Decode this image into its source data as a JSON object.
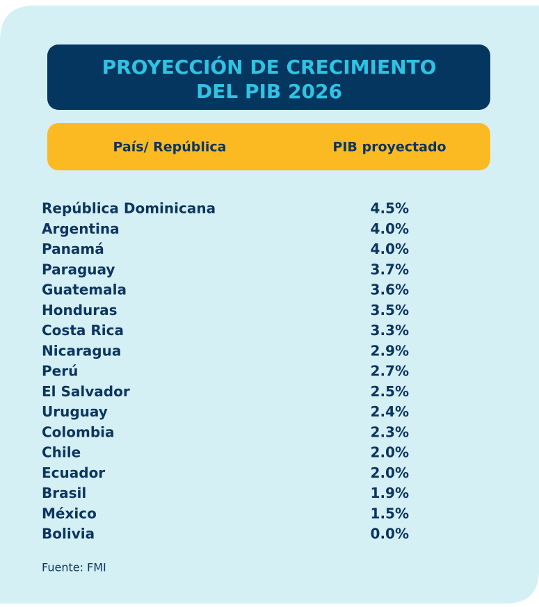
{
  "title": {
    "lines": [
      "PROYECCIÓN DE CRECIMIENTO",
      "DEL PIB 2026"
    ]
  },
  "table": {
    "header": [
      "País/ República",
      "PIB proyectado"
    ],
    "rows": [
      [
        "República Dominicana",
        "4.5%"
      ],
      [
        "Argentina",
        "4.0%"
      ],
      [
        "Panamá",
        "4.0%"
      ],
      [
        "Paraguay",
        "3.7%"
      ],
      [
        "Guatemala",
        "3.6%"
      ],
      [
        "Honduras",
        "3.5%"
      ],
      [
        "Costa Rica",
        "3.3%"
      ],
      [
        "Nicaragua",
        "2.9%"
      ],
      [
        "Perú",
        "2.7%"
      ],
      [
        "El Salvador",
        "2.5%"
      ],
      [
        "Uruguay",
        "2.4%"
      ],
      [
        "Colombia",
        "2.3%"
      ],
      [
        "Chile",
        "2.0%"
      ],
      [
        "Ecuador",
        "2.0%"
      ],
      [
        "Brasil",
        "1.9%"
      ],
      [
        "México",
        "1.5%"
      ],
      [
        "Bolivia",
        "0.0%"
      ]
    ]
  },
  "source": "Fuente:  FMI"
}
